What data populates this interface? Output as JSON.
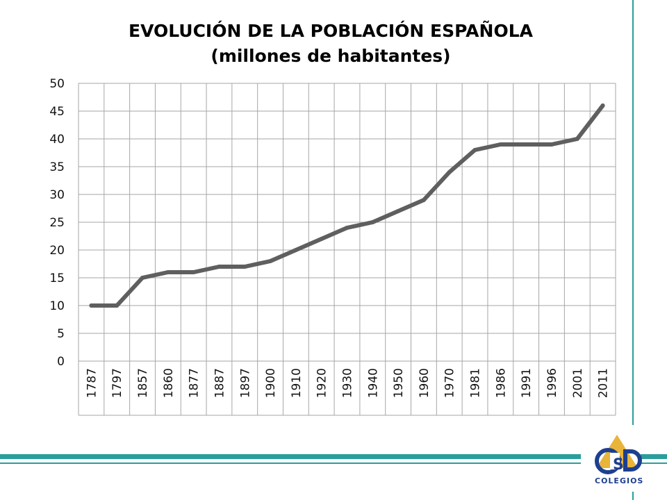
{
  "slide": {
    "title_line1": "EVOLUCIÓN DE LA POBLACIÓN ESPAÑOLA",
    "title_line2": "(millones de habitantes)",
    "logo": {
      "icon": "csd-logo-icon",
      "text": "COLEGIOS"
    },
    "colors": {
      "accent": "#2a9d9c",
      "line": "#5f5f5f",
      "grid": "#a6a6a6",
      "logo_gold": "#e8b53a",
      "logo_blue": "#1d3f8f"
    }
  },
  "chart_data": {
    "type": "line",
    "title": "EVOLUCIÓN DE LA POBLACIÓN ESPAÑOLA",
    "subtitle": "(millones de habitantes)",
    "xlabel": "",
    "ylabel": "",
    "categories": [
      "1787",
      "1797",
      "1857",
      "1860",
      "1877",
      "1887",
      "1897",
      "1900",
      "1910",
      "1920",
      "1930",
      "1940",
      "1950",
      "1960",
      "1970",
      "1981",
      "1986",
      "1991",
      "1996",
      "2001",
      "2011"
    ],
    "series": [
      {
        "values": [
          10,
          10,
          15,
          16,
          16,
          17,
          17,
          18,
          20,
          22,
          24,
          25,
          27,
          29,
          34,
          38,
          39,
          39,
          39,
          40,
          46
        ]
      }
    ],
    "ylim": [
      0,
      50
    ],
    "yticks": [
      0,
      5,
      10,
      15,
      20,
      25,
      30,
      35,
      40,
      45,
      50
    ],
    "grid": true,
    "legend": "none"
  }
}
